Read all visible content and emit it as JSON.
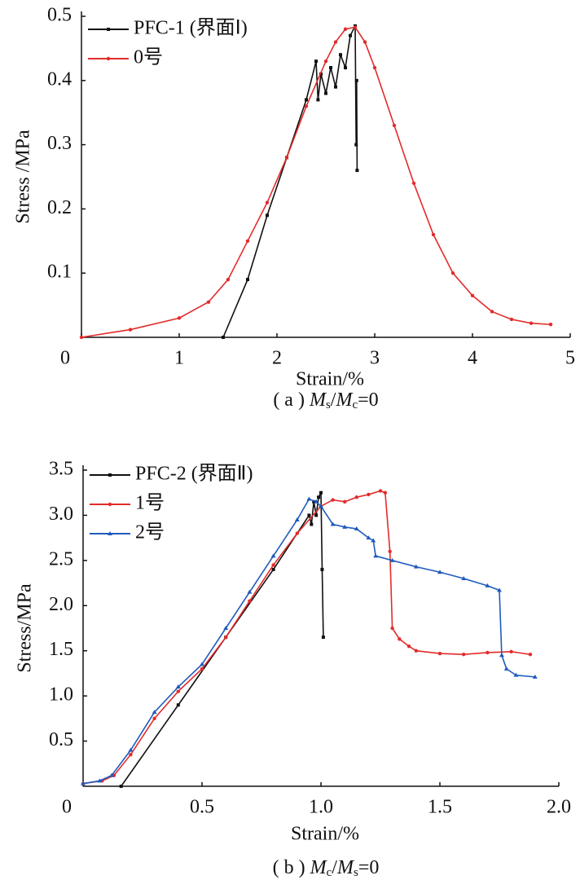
{
  "chart_data": [
    {
      "type": "line",
      "xlabel": "Strain/%",
      "ylabel": "Stress /MPa",
      "caption": [
        "( a ) ",
        "M",
        "s",
        "/",
        "M",
        "c",
        "=0"
      ],
      "xlim": [
        0,
        5
      ],
      "xticks": [
        0,
        1,
        2,
        3,
        4,
        5
      ],
      "ylim": [
        0,
        0.5
      ],
      "yticks": [
        0.1,
        0.2,
        0.3,
        0.4,
        0.5
      ],
      "legend": "upper left",
      "series": [
        {
          "name": "PFC-1 (界面Ⅰ)",
          "color": "#111111",
          "marker": "square",
          "x": [
            1.45,
            1.7,
            1.9,
            2.1,
            2.3,
            2.4,
            2.42,
            2.45,
            2.5,
            2.55,
            2.6,
            2.65,
            2.7,
            2.75,
            2.8,
            2.81,
            2.815,
            2.82
          ],
          "values": [
            0,
            0.09,
            0.19,
            0.28,
            0.37,
            0.43,
            0.37,
            0.41,
            0.38,
            0.42,
            0.39,
            0.44,
            0.42,
            0.47,
            0.485,
            0.3,
            0.4,
            0.26
          ]
        },
        {
          "name": "0号",
          "color": "#e32b2b",
          "marker": "circle",
          "x": [
            0,
            0.5,
            1,
            1.3,
            1.5,
            1.7,
            1.9,
            2.1,
            2.3,
            2.5,
            2.6,
            2.7,
            2.8,
            2.9,
            3.0,
            3.2,
            3.4,
            3.6,
            3.8,
            4.0,
            4.2,
            4.4,
            4.6,
            4.8
          ],
          "values": [
            0,
            0.012,
            0.03,
            0.055,
            0.09,
            0.15,
            0.21,
            0.28,
            0.36,
            0.43,
            0.46,
            0.48,
            0.483,
            0.46,
            0.42,
            0.33,
            0.24,
            0.16,
            0.1,
            0.065,
            0.04,
            0.028,
            0.022,
            0.02
          ]
        }
      ]
    },
    {
      "type": "line",
      "xlabel": "Strain/%",
      "ylabel": "Stress/MPa",
      "caption": [
        "( b ) ",
        "M",
        "c",
        "/",
        "M",
        "s",
        "=0"
      ],
      "xlim": [
        0,
        2
      ],
      "xticks": [
        0,
        0.5,
        {
          "value": 1,
          "label": "1.0"
        },
        1.5,
        {
          "value": 2,
          "label": "2.0"
        }
      ],
      "ylim": [
        0,
        3.5
      ],
      "yticks": [
        0.5,
        {
          "value": 1,
          "label": "1.0"
        },
        1.5,
        {
          "value": 2,
          "label": "2.0"
        },
        2.5,
        {
          "value": 3,
          "label": "3.0"
        },
        3.5
      ],
      "legend": "upper left",
      "series": [
        {
          "name": "PFC-2 (界面Ⅱ)",
          "color": "#111111",
          "marker": "square",
          "x": [
            0.16,
            0.4,
            0.6,
            0.8,
            0.95,
            0.96,
            0.97,
            0.98,
            0.99,
            1.0,
            1.005,
            1.01
          ],
          "values": [
            0,
            0.9,
            1.65,
            2.4,
            3.0,
            2.9,
            3.15,
            3.0,
            3.2,
            3.25,
            2.4,
            1.65
          ]
        },
        {
          "name": "1号",
          "color": "#e32b2b",
          "marker": "circle",
          "x": [
            0,
            0.08,
            0.13,
            0.2,
            0.3,
            0.4,
            0.5,
            0.6,
            0.7,
            0.8,
            0.9,
            1.0,
            1.05,
            1.1,
            1.15,
            1.2,
            1.25,
            1.27,
            1.29,
            1.3,
            1.33,
            1.37,
            1.4,
            1.5,
            1.6,
            1.7,
            1.8,
            1.88
          ],
          "values": [
            0.03,
            0.06,
            0.12,
            0.35,
            0.75,
            1.05,
            1.3,
            1.65,
            2.05,
            2.45,
            2.8,
            3.1,
            3.17,
            3.15,
            3.2,
            3.23,
            3.27,
            3.25,
            2.6,
            1.75,
            1.63,
            1.55,
            1.5,
            1.47,
            1.46,
            1.48,
            1.49,
            1.46
          ]
        },
        {
          "name": "2号",
          "color": "#1f5bbd",
          "marker": "triangle",
          "x": [
            0,
            0.07,
            0.12,
            0.2,
            0.3,
            0.4,
            0.5,
            0.6,
            0.7,
            0.8,
            0.9,
            0.95,
            0.98,
            1.0,
            1.05,
            1.1,
            1.15,
            1.2,
            1.22,
            1.23,
            1.3,
            1.4,
            1.5,
            1.6,
            1.7,
            1.75,
            1.76,
            1.78,
            1.82,
            1.9
          ],
          "values": [
            0.03,
            0.06,
            0.12,
            0.4,
            0.82,
            1.1,
            1.35,
            1.75,
            2.15,
            2.55,
            2.95,
            3.18,
            3.15,
            3.1,
            2.9,
            2.87,
            2.85,
            2.75,
            2.72,
            2.55,
            2.5,
            2.43,
            2.37,
            2.3,
            2.22,
            2.17,
            1.45,
            1.3,
            1.23,
            1.21
          ]
        }
      ]
    }
  ]
}
